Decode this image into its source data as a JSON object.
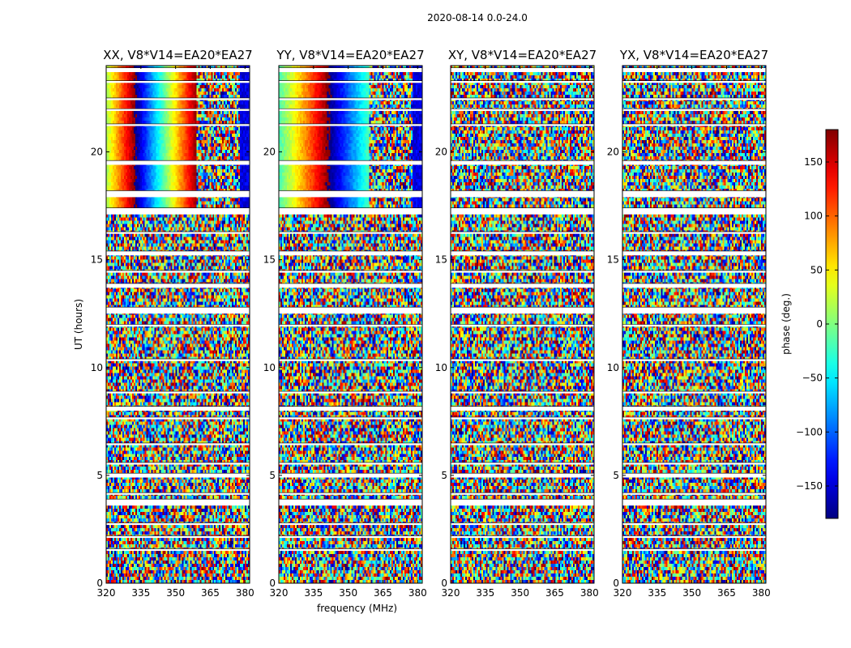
{
  "figure": {
    "suptitle": "2020-08-14 0.0-24.0",
    "colorbar": {
      "label": "phase (deg.)",
      "ticks": [
        -150,
        -100,
        -50,
        0,
        50,
        100,
        150
      ],
      "tick_labels": [
        "−150",
        "−100",
        "−50",
        "0",
        "50",
        "100",
        "150"
      ],
      "range": [
        -180,
        180
      ],
      "colormap": "jet"
    }
  },
  "chart_data": [
    {
      "type": "heatmap",
      "title": "XX, V8*V14=EA20*EA27",
      "xlabel": "",
      "ylabel": "UT (hours)",
      "xlim": [
        320,
        382
      ],
      "ylim": [
        0,
        24
      ],
      "xticks": [
        320,
        335,
        350,
        365,
        380
      ],
      "yticks": [
        0,
        5,
        10,
        15,
        20
      ],
      "value": "phase (deg.)"
    },
    {
      "type": "heatmap",
      "title": "YY, V8*V14=EA20*EA27",
      "xlabel": "frequency (MHz)",
      "ylabel": "",
      "xlim": [
        320,
        382
      ],
      "ylim": [
        0,
        24
      ],
      "xticks": [
        320,
        335,
        350,
        365,
        380
      ],
      "yticks": [
        0,
        5,
        10,
        15,
        20
      ],
      "value": "phase (deg.)"
    },
    {
      "type": "heatmap",
      "title": "XY, V8*V14=EA20*EA27",
      "xlabel": "",
      "ylabel": "",
      "xlim": [
        320,
        382
      ],
      "ylim": [
        0,
        24
      ],
      "xticks": [
        320,
        335,
        350,
        365,
        380
      ],
      "yticks": [
        0,
        5,
        10,
        15,
        20
      ],
      "value": "phase (deg.)"
    },
    {
      "type": "heatmap",
      "title": "YX, V8*V14=EA20*EA27",
      "xlabel": "",
      "ylabel": "",
      "xlim": [
        320,
        382
      ],
      "ylim": [
        0,
        24
      ],
      "xticks": [
        320,
        335,
        350,
        365,
        380
      ],
      "yticks": [
        0,
        5,
        10,
        15,
        20
      ],
      "value": "phase (deg.)"
    }
  ]
}
